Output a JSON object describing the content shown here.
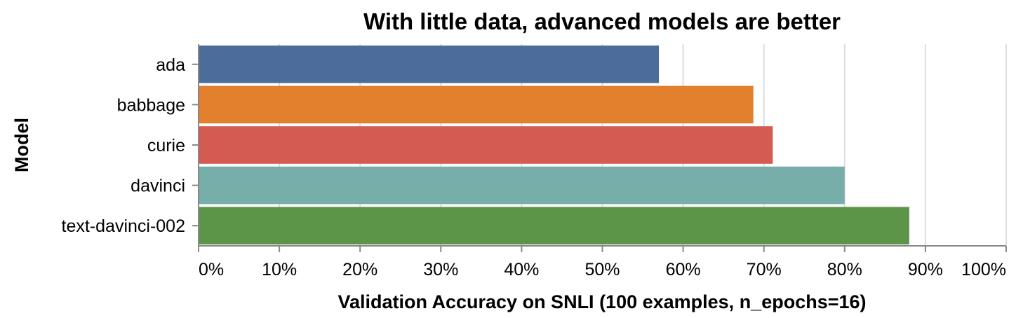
{
  "chart_data": {
    "type": "bar",
    "orientation": "horizontal",
    "title": "With little data, advanced models are better",
    "xlabel": "Validation Accuracy on SNLI (100 examples, n_epochs=16)",
    "ylabel": "Model",
    "xlim": [
      0,
      1
    ],
    "x_ticks": [
      "0%",
      "10%",
      "20%",
      "30%",
      "40%",
      "50%",
      "60%",
      "70%",
      "80%",
      "90%",
      "100%"
    ],
    "grid": true,
    "categories": [
      "ada",
      "babbage",
      "curie",
      "davinci",
      "text-davinci-002"
    ],
    "values": [
      0.57,
      0.687,
      0.711,
      0.8,
      0.88
    ],
    "colors": [
      "#4c6d9c",
      "#e2802d",
      "#d45b52",
      "#77aeaa",
      "#5d9548"
    ]
  }
}
